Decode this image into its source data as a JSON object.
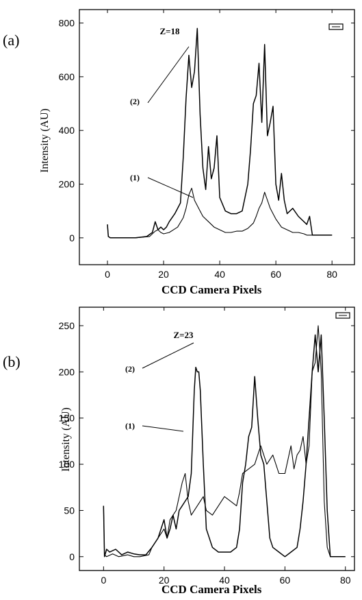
{
  "figure": {
    "panels": [
      {
        "label": "(a)",
        "annotation": "Z=18",
        "curve1_label": "(1)",
        "curve2_label": "(2)"
      },
      {
        "label": "(b)",
        "annotation": "Z=23",
        "curve1_label": "(1)",
        "curve2_label": "(2)"
      }
    ]
  },
  "chart_data": [
    {
      "type": "line",
      "panel": "(a)",
      "title": "",
      "annotation": "Z=18",
      "xlabel": "CCD Camera Pixels",
      "ylabel": "Intensity (AU)",
      "xlim": [
        -10,
        88
      ],
      "ylim": [
        -100,
        850
      ],
      "xticks": [
        0,
        20,
        40,
        60,
        80
      ],
      "yticks": [
        0,
        200,
        400,
        600,
        800
      ],
      "series": [
        {
          "name": "(1)",
          "x": [
            0,
            0.3,
            1,
            5,
            10,
            15,
            17,
            18,
            19,
            20,
            22,
            25,
            27,
            28,
            29,
            30,
            31,
            32,
            33,
            34,
            36,
            38,
            40,
            42,
            44,
            46,
            48,
            50,
            52,
            53,
            54,
            55,
            56,
            57,
            58,
            59,
            60,
            62,
            64,
            66,
            68,
            70,
            71,
            72,
            73,
            75,
            80
          ],
          "values": [
            50,
            5,
            0,
            0,
            0,
            5,
            25,
            30,
            20,
            15,
            20,
            40,
            75,
            110,
            160,
            185,
            140,
            120,
            100,
            80,
            60,
            40,
            30,
            20,
            20,
            25,
            25,
            35,
            55,
            80,
            110,
            130,
            170,
            140,
            110,
            90,
            70,
            40,
            30,
            20,
            20,
            15,
            10,
            10,
            10,
            10,
            10
          ]
        },
        {
          "name": "(2)",
          "x": [
            0,
            0.3,
            1,
            5,
            10,
            14,
            16,
            17,
            18,
            19,
            20,
            21,
            22,
            24,
            26,
            27,
            28,
            29,
            30,
            31,
            32,
            33,
            34,
            35,
            36,
            37,
            38,
            39,
            40,
            42,
            44,
            46,
            48,
            50,
            51,
            52,
            53,
            54,
            55,
            56,
            57,
            58,
            59,
            60,
            61,
            62,
            63,
            64,
            66,
            68,
            70,
            71,
            72,
            73,
            75,
            80
          ],
          "values": [
            50,
            5,
            0,
            0,
            0,
            5,
            20,
            60,
            30,
            40,
            30,
            40,
            60,
            90,
            130,
            300,
            520,
            680,
            560,
            620,
            780,
            460,
            260,
            180,
            340,
            220,
            260,
            380,
            150,
            100,
            90,
            90,
            100,
            200,
            330,
            500,
            530,
            650,
            430,
            720,
            380,
            430,
            490,
            200,
            140,
            240,
            140,
            90,
            110,
            80,
            60,
            50,
            80,
            10,
            10,
            10
          ]
        }
      ]
    },
    {
      "type": "line",
      "panel": "(b)",
      "title": "",
      "annotation": "Z=23",
      "xlabel": "CCD Camera Pixels",
      "ylabel": "Intensity (AU)",
      "xlim": [
        -8,
        83
      ],
      "ylim": [
        -15,
        270
      ],
      "xticks": [
        0,
        20,
        40,
        60,
        80
      ],
      "yticks": [
        0,
        50,
        100,
        150,
        200,
        250
      ],
      "series": [
        {
          "name": "(1)",
          "x": [
            0,
            0.3,
            1,
            3,
            5,
            8,
            10,
            12,
            15,
            16,
            18,
            20,
            21,
            22,
            24,
            25,
            26,
            27,
            28,
            29,
            30,
            31,
            32,
            33,
            34,
            36,
            38,
            40,
            42,
            44,
            45,
            46,
            48,
            50,
            51,
            52,
            54,
            56,
            58,
            60,
            61,
            62,
            63,
            64,
            65,
            66,
            67,
            68,
            69,
            70,
            71,
            72,
            73,
            74,
            75,
            80
          ],
          "values": [
            55,
            2,
            0,
            3,
            0,
            2,
            0,
            0,
            2,
            10,
            20,
            30,
            20,
            40,
            50,
            65,
            80,
            90,
            60,
            45,
            50,
            55,
            60,
            65,
            50,
            45,
            55,
            65,
            60,
            55,
            70,
            90,
            95,
            100,
            110,
            120,
            100,
            110,
            90,
            90,
            105,
            120,
            95,
            110,
            115,
            130,
            100,
            120,
            200,
            210,
            250,
            200,
            60,
            10,
            0,
            0
          ]
        },
        {
          "name": "(2)",
          "x": [
            0,
            0.3,
            1,
            2,
            4,
            6,
            8,
            10,
            12,
            14,
            16,
            17,
            18,
            20,
            21,
            22,
            23,
            24,
            25,
            26,
            27,
            28,
            29,
            30,
            30.5,
            31,
            31.5,
            32,
            33,
            34,
            36,
            38,
            40,
            42,
            44,
            45,
            46,
            47,
            48,
            49,
            50,
            51,
            52,
            53,
            54,
            55,
            56,
            58,
            60,
            62,
            64,
            65,
            66,
            67,
            68,
            69,
            70,
            71,
            72,
            73,
            74,
            75,
            80
          ],
          "values": [
            55,
            0,
            8,
            5,
            8,
            2,
            5,
            3,
            2,
            2,
            10,
            15,
            20,
            40,
            20,
            30,
            45,
            30,
            50,
            55,
            60,
            65,
            90,
            180,
            205,
            200,
            200,
            180,
            100,
            30,
            10,
            5,
            5,
            5,
            10,
            30,
            80,
            100,
            130,
            140,
            195,
            150,
            110,
            100,
            60,
            20,
            10,
            5,
            0,
            5,
            10,
            30,
            60,
            100,
            150,
            200,
            240,
            200,
            240,
            150,
            50,
            0,
            0
          ]
        }
      ]
    }
  ]
}
